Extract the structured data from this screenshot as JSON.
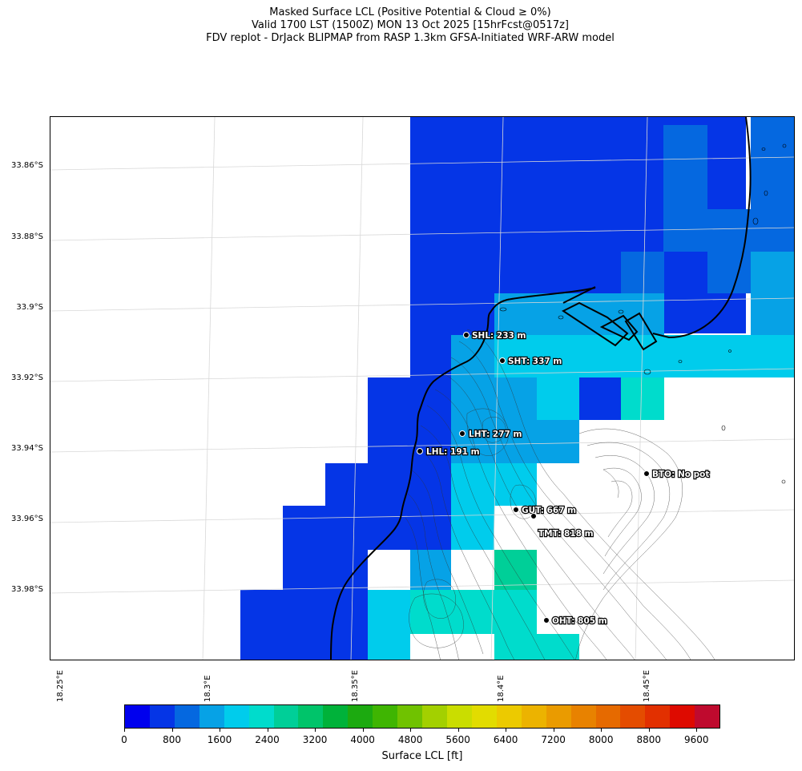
{
  "title": {
    "line1": "Masked Surface LCL (Positive Potential & Cloud ≥ 0%)",
    "line2": "Valid 1700 LST (1500Z) MON 13 Oct 2025 [15hrFcst@0517z]",
    "line3": "FDV replot - DrJack BLIPMAP from RASP 1.3km GFSA-Initiated WRF-ARW model"
  },
  "axes": {
    "lat_ticks": [
      "33.86°S",
      "33.88°S",
      "33.9°S",
      "33.92°S",
      "33.94°S",
      "33.96°S",
      "33.98°S"
    ],
    "lon_ticks": [
      "18.25°E",
      "18.3°E",
      "18.35°E",
      "18.4°E",
      "18.45°E"
    ]
  },
  "colorbar": {
    "label": "Surface LCL [ft]",
    "ticks": [
      "0",
      "800",
      "1600",
      "2400",
      "3200",
      "4000",
      "4800",
      "5600",
      "6400",
      "7200",
      "8000",
      "8800",
      "9600"
    ],
    "min": 0,
    "max": 10000,
    "colors": [
      "#0000ee",
      "#0535e6",
      "#0568e0",
      "#06a2e6",
      "#00ccec",
      "#00dccc",
      "#00cf98",
      "#00c46a",
      "#00b23a",
      "#1caa10",
      "#3fb502",
      "#70c200",
      "#a3d000",
      "#cadd00",
      "#e2dc00",
      "#ecca00",
      "#ecb300",
      "#ea9b00",
      "#e88200",
      "#e66a00",
      "#e44c00",
      "#e23000",
      "#de0a00",
      "#bf0a2e"
    ]
  },
  "sites": [
    {
      "code": "SHL",
      "label": "SHL: 233 m"
    },
    {
      "code": "SHT",
      "label": "SHT: 337 m"
    },
    {
      "code": "LHT",
      "label": "LHT: 277 m"
    },
    {
      "code": "LHL",
      "label": "LHL: 191 m"
    },
    {
      "code": "BTO",
      "label": "BTO: No pot"
    },
    {
      "code": "GUT",
      "label": "GUT: 667 m"
    },
    {
      "code": "TMT",
      "label": "TMT: 818 m"
    },
    {
      "code": "OHT",
      "label": "OHT: 805 m"
    }
  ]
}
